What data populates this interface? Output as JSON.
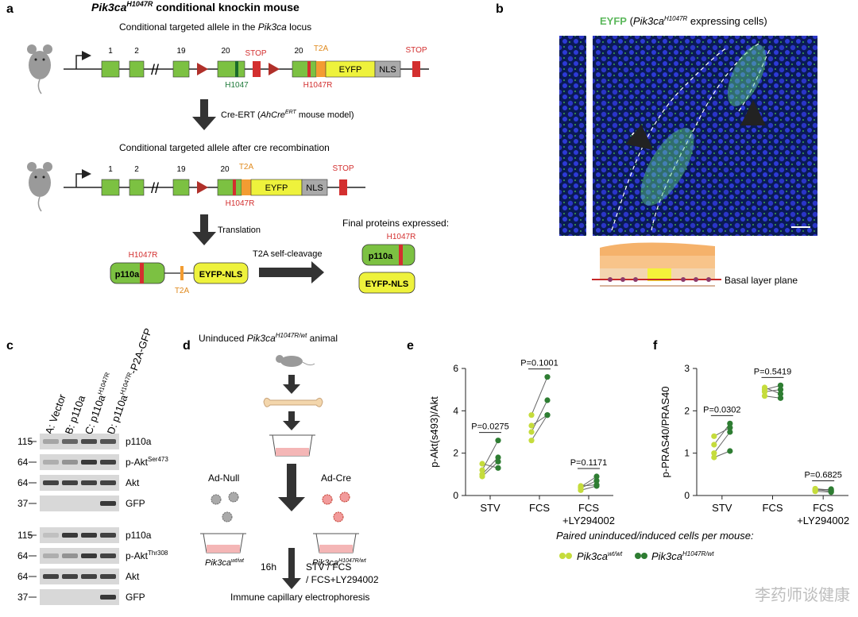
{
  "panel_labels": {
    "a": "a",
    "b": "b",
    "c": "c",
    "d": "d",
    "e": "e",
    "f": "f"
  },
  "panel_a": {
    "title_gene": "Pik3ca",
    "title_sup": "H1047R",
    "title_rest": " conditional knockin mouse",
    "locus_pre": "Conditional targeted allele in the ",
    "locus_gene": "Pik3ca",
    "locus_post": " locus",
    "exons1": [
      "1",
      "2",
      "19",
      "20",
      "20"
    ],
    "stop": "STOP",
    "t2a": "T2A",
    "eyfp": "EYFP",
    "nls": "NLS",
    "h1047": "H1047",
    "h1047r": "H1047R",
    "cre_pre": "Cre-ERT (",
    "cre_model": "AhCre",
    "cre_sup": "ERT",
    "cre_post": " mouse model)",
    "after_cre": "Conditional targeted allele after cre recombination",
    "exons2": [
      "1",
      "2",
      "19",
      "20"
    ],
    "translation": "Translation",
    "final_proteins": "Final proteins expressed:",
    "p110a": "p110a",
    "eyfp_nls": "EYFP-NLS",
    "self_cleavage": "T2A self-cleavage"
  },
  "panel_b": {
    "eyfp": "EYFP",
    "paren_pre": " (",
    "gene": "Pik3ca",
    "sup": "H1047R",
    "paren_post": " expressing cells)",
    "basal": "Basal layer plane"
  },
  "panel_c": {
    "lanes": [
      "A: Vector",
      "B: p110a",
      "C: p110a",
      "D: p110a"
    ],
    "lane_c_sup": "H1047R",
    "lane_d_sup": "H1047R",
    "lane_d_suffix": "-P2A-GFP",
    "blots": [
      {
        "mw": "115",
        "label": "p110a"
      },
      {
        "mw": "64",
        "label": "p-Akt",
        "sup": "Ser473"
      },
      {
        "mw": "64",
        "label": "Akt"
      },
      {
        "mw": "37",
        "label": "GFP"
      },
      {
        "mw": "115",
        "label": "p110a"
      },
      {
        "mw": "64",
        "label": "p-Akt",
        "sup": "Thr308"
      },
      {
        "mw": "64",
        "label": "Akt"
      },
      {
        "mw": "37",
        "label": "GFP"
      }
    ]
  },
  "panel_d": {
    "uninduced_pre": "Uninduced ",
    "uninduced_gene": "Pik3ca",
    "uninduced_sup": "H1047R/wt",
    "uninduced_post": " animal",
    "ad_null": "Ad-Null",
    "ad_cre": "Ad-Cre",
    "wt_gene": "Pik3ca",
    "wt_sup": "wt/wt",
    "mut_gene": "Pik3ca",
    "mut_sup": "H1047R/wt",
    "time": "16h",
    "cond1": "STV / FCS",
    "cond2": "/ FCS+LY294002",
    "readout": "Immune capillary electrophoresis"
  },
  "legend": {
    "title": "Paired uninduced/induced cells per mouse:",
    "wt_gene": "Pik3ca",
    "wt_sup": "wt/wt",
    "mut_gene": "Pik3ca",
    "mut_sup": "H1047R/wt",
    "color_light": "#c5dc3c",
    "color_dark": "#2e7d32"
  },
  "watermark": "李药师谈健康",
  "chart_data": [
    {
      "type": "scatter",
      "panel": "e",
      "ylabel": "p-Akt(s493)/Akt",
      "ylim": [
        0,
        6
      ],
      "yticks": [
        0,
        2,
        4,
        6
      ],
      "categories": [
        "STV",
        "FCS",
        "FCS\n+LY294002"
      ],
      "category_lines": [
        [
          "STV"
        ],
        [
          "FCS"
        ],
        [
          "FCS",
          "+LY294002"
        ]
      ],
      "pvalues": [
        "P=0.0275",
        "P=0.1001",
        "P=0.1171"
      ],
      "pairs": [
        [
          [
            0.9,
            1.6
          ],
          [
            1.0,
            1.8
          ],
          [
            1.2,
            2.6
          ],
          [
            1.5,
            1.3
          ]
        ],
        [
          [
            2.6,
            3.8
          ],
          [
            3.0,
            4.5
          ],
          [
            3.3,
            3.8
          ],
          [
            3.8,
            5.6
          ]
        ],
        [
          [
            0.25,
            0.45
          ],
          [
            0.35,
            0.7
          ],
          [
            0.4,
            0.9
          ],
          [
            0.45,
            0.5
          ]
        ]
      ]
    },
    {
      "type": "scatter",
      "panel": "f",
      "ylabel": "p-PRAS40/PRAS40",
      "ylim": [
        0,
        3
      ],
      "yticks": [
        0,
        1,
        2,
        3
      ],
      "categories": [
        "STV",
        "FCS",
        "FCS\n+LY294002"
      ],
      "category_lines": [
        [
          "STV"
        ],
        [
          "FCS"
        ],
        [
          "FCS",
          "+LY294002"
        ]
      ],
      "pvalues": [
        "P=0.0302",
        "P=0.5419",
        "P=0.6825"
      ],
      "pairs": [
        [
          [
            0.9,
            1.05
          ],
          [
            1.0,
            1.5
          ],
          [
            1.2,
            1.7
          ],
          [
            1.4,
            1.6
          ]
        ],
        [
          [
            2.35,
            2.3
          ],
          [
            2.45,
            2.5
          ],
          [
            2.5,
            2.6
          ],
          [
            2.55,
            2.4
          ]
        ],
        [
          [
            0.1,
            0.08
          ],
          [
            0.12,
            0.15
          ],
          [
            0.14,
            0.1
          ],
          [
            0.16,
            0.13
          ]
        ]
      ]
    }
  ]
}
